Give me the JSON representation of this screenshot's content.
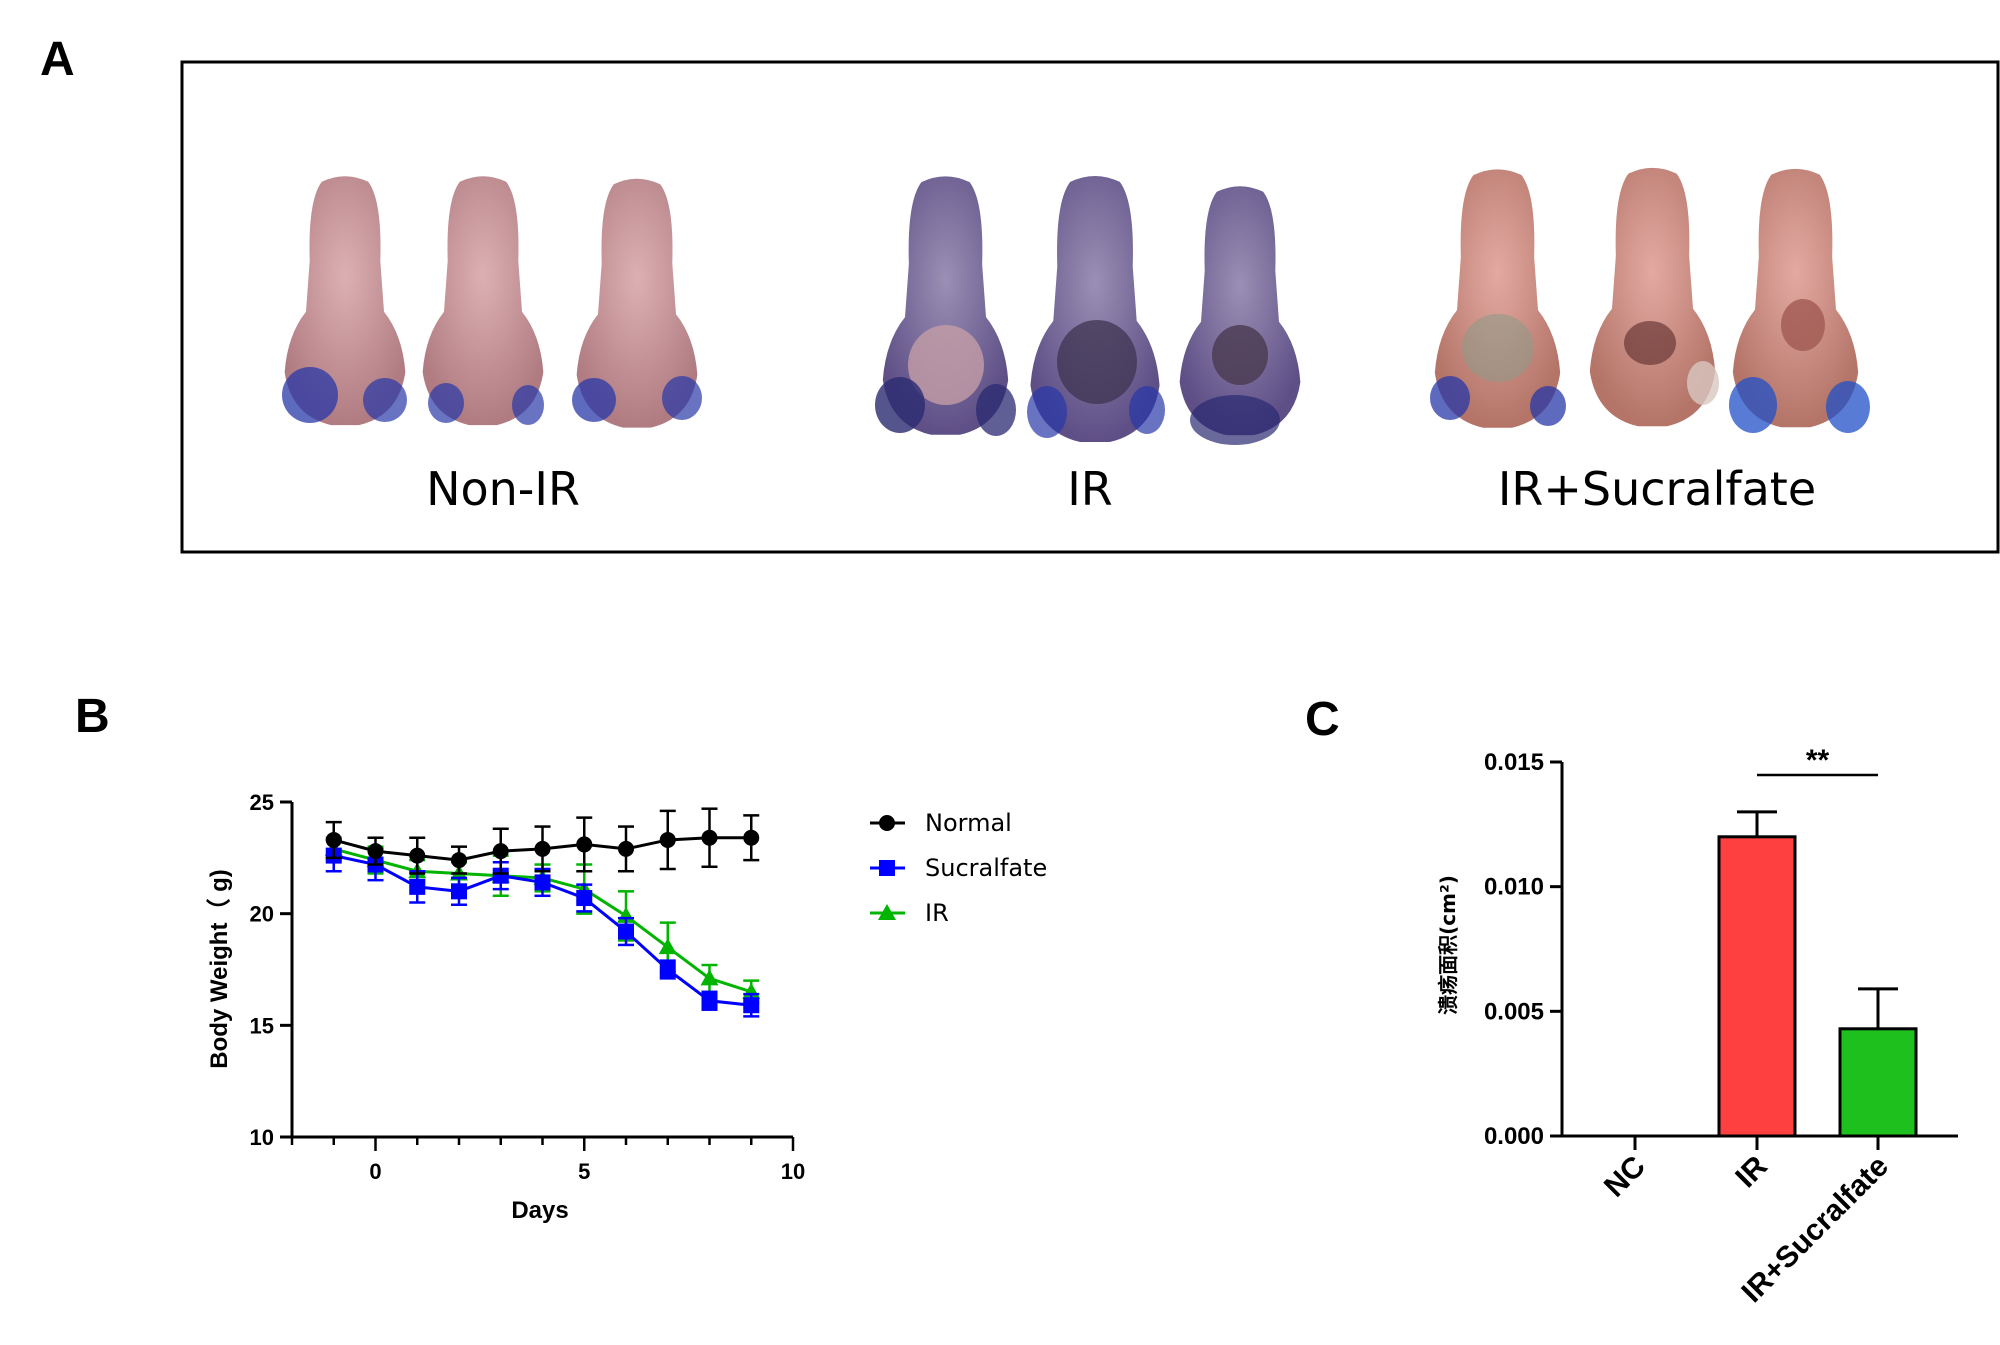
{
  "panels": {
    "a": {
      "letter": "A",
      "groups": [
        "Non-IR",
        "IR",
        "IR+Sucralfate"
      ]
    },
    "b": {
      "letter": "B"
    },
    "c": {
      "letter": "C"
    }
  },
  "colors": {
    "normal": "#000000",
    "sucralfate": "#0000ff",
    "ir_line": "#00b400",
    "ir_bar": "#ff4040",
    "sucralfate_bar": "#1ec01e",
    "tissue_pink": "#c99598",
    "tissue_purple": "#7e6a9a",
    "tissue_red": "#c98a82",
    "stain_blue": "#2838a8"
  },
  "chart_data": [
    {
      "type": "line",
      "title": "",
      "xlabel": "Days",
      "ylabel": "Body Weight（ g)",
      "xlim": [
        -2,
        10
      ],
      "ylim": [
        10,
        25
      ],
      "xticks": [
        0,
        5,
        10
      ],
      "yticks": [
        10,
        15,
        20,
        25
      ],
      "legend_position": "right",
      "x": [
        -1,
        0,
        1,
        2,
        3,
        4,
        5,
        6,
        7,
        8,
        9
      ],
      "series": [
        {
          "name": "Normal",
          "marker": "circle",
          "values": [
            23.3,
            22.8,
            22.6,
            22.4,
            22.8,
            22.9,
            23.1,
            22.9,
            23.3,
            23.4,
            23.4
          ],
          "errors": [
            0.8,
            0.6,
            0.8,
            0.6,
            1.0,
            1.0,
            1.2,
            1.0,
            1.3,
            1.3,
            1.0
          ]
        },
        {
          "name": "Sucralfate",
          "marker": "square",
          "values": [
            22.6,
            22.2,
            21.2,
            21.0,
            21.7,
            21.4,
            20.7,
            19.2,
            17.5,
            16.1,
            15.9
          ],
          "errors": [
            0.7,
            0.7,
            0.7,
            0.6,
            0.6,
            0.6,
            0.6,
            0.6,
            0.4,
            0.4,
            0.5
          ]
        },
        {
          "name": "IR",
          "marker": "triangle",
          "values": [
            22.9,
            22.4,
            21.9,
            21.8,
            21.7,
            21.6,
            21.1,
            19.9,
            18.5,
            17.1,
            16.5
          ],
          "errors": [
            0.5,
            0.6,
            0.5,
            0.5,
            0.9,
            0.6,
            1.1,
            1.1,
            1.1,
            0.6,
            0.5
          ]
        }
      ]
    },
    {
      "type": "bar",
      "title": "",
      "xlabel": "",
      "ylabel": "溃疡面积(cm²)",
      "categories": [
        "NC",
        "IR",
        "IR+Sucralfate"
      ],
      "values": [
        0.0,
        0.012,
        0.0043
      ],
      "errors": [
        0.0,
        0.001,
        0.0016
      ],
      "ylim": [
        0,
        0.015
      ],
      "yticks": [
        "0.000",
        "0.005",
        "0.010",
        "0.015"
      ],
      "significance": {
        "between": [
          "IR",
          "IR+Sucralfate"
        ],
        "label": "**"
      }
    }
  ]
}
